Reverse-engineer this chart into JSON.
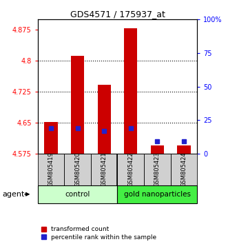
{
  "title": "GDS4571 / 175937_at",
  "samples": [
    "GSM805419",
    "GSM805420",
    "GSM805421",
    "GSM805422",
    "GSM805423",
    "GSM805424"
  ],
  "red_values": [
    4.652,
    4.812,
    4.742,
    4.878,
    4.595,
    4.595
  ],
  "blue_values_pct": [
    19,
    19,
    17,
    19,
    9,
    9
  ],
  "ylim_left": [
    4.575,
    4.9
  ],
  "ylim_right": [
    0,
    100
  ],
  "yticks_left": [
    4.575,
    4.65,
    4.725,
    4.8,
    4.875
  ],
  "ytick_labels_left": [
    "4.575",
    "4.65",
    "4.725",
    "4.8",
    "4.875"
  ],
  "yticks_right": [
    0,
    25,
    50,
    75,
    100
  ],
  "ytick_labels_right": [
    "0",
    "25",
    "50",
    "75",
    "100%"
  ],
  "grid_values": [
    4.65,
    4.725,
    4.8
  ],
  "bar_bottom": 4.575,
  "bar_color": "#cc0000",
  "blue_color": "#2222cc",
  "ctrl_color": "#ccffcc",
  "gold_color": "#44ee44",
  "gray_color": "#d0d0d0",
  "legend_items": [
    "transformed count",
    "percentile rank within the sample"
  ],
  "legend_colors": [
    "#cc0000",
    "#2222cc"
  ],
  "agent_label": "agent"
}
